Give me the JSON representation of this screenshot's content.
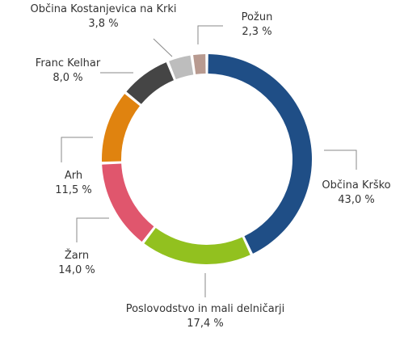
{
  "chart_data": {
    "type": "pie",
    "donut": true,
    "legend": "none",
    "slices": [
      {
        "label": "Občina Krško",
        "value": 43.0,
        "value_label": "43,0 %",
        "color": "#1f4e86"
      },
      {
        "label": "Poslovodstvo in mali delničarji",
        "value": 17.4,
        "value_label": "17,4 %",
        "color": "#92c11f"
      },
      {
        "label": "Žarn",
        "value": 14.0,
        "value_label": "14,0 %",
        "color": "#e0566d"
      },
      {
        "label": "Arh",
        "value": 11.5,
        "value_label": "11,5 %",
        "color": "#e0830f"
      },
      {
        "label": "Franc Kelhar",
        "value": 8.0,
        "value_label": "8,0 %",
        "color": "#454545"
      },
      {
        "label": "Občina Kostanjevica na Krki",
        "value": 3.8,
        "value_label": "3,8 %",
        "color": "#bdbdbd"
      },
      {
        "label": "Požun",
        "value": 2.3,
        "value_label": "2,3 %",
        "color": "#b89a90"
      }
    ]
  }
}
